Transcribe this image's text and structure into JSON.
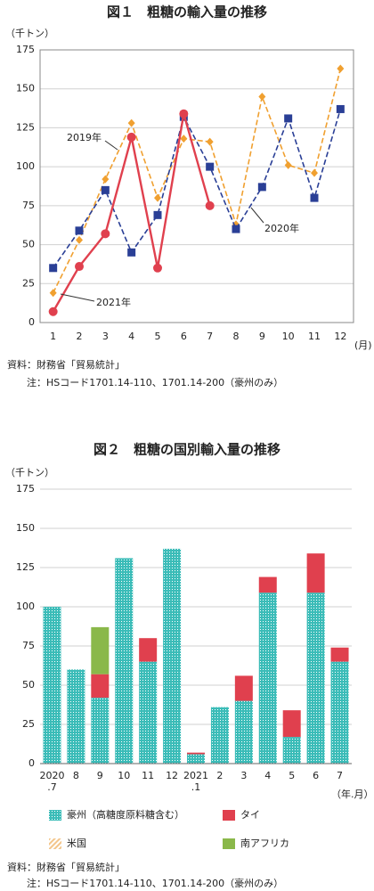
{
  "chart_data": [
    {
      "type": "line",
      "title": "図１　粗糖の輸入量の推移",
      "y_label": "（千トン）",
      "x_label": "(月)",
      "categories": [
        "1",
        "2",
        "3",
        "4",
        "5",
        "6",
        "7",
        "8",
        "9",
        "10",
        "11",
        "12"
      ],
      "series": [
        {
          "name": "2019年",
          "color": "#f0a030",
          "dash": true,
          "marker": "diamond",
          "values": [
            19,
            53,
            92,
            128,
            80,
            118,
            116,
            63,
            145,
            101,
            96,
            163
          ]
        },
        {
          "name": "2020年",
          "color": "#2a3f96",
          "dash": true,
          "marker": "square",
          "values": [
            35,
            59,
            85,
            45,
            69,
            132,
            100,
            60,
            87,
            131,
            80,
            137
          ]
        },
        {
          "name": "2021年",
          "color": "#e0404e",
          "dash": false,
          "marker": "circle",
          "values": [
            7,
            36,
            57,
            119,
            35,
            134,
            75,
            null,
            null,
            null,
            null,
            null
          ]
        }
      ],
      "ylim": [
        0,
        175
      ],
      "yticks": [
        0,
        25,
        50,
        75,
        100,
        125,
        150,
        175
      ],
      "grid": true,
      "source": "資料：財務省「貿易統計」",
      "note": "注：HSコード1701.14-110、1701.14-200（豪州のみ）"
    },
    {
      "type": "bar",
      "stacked": true,
      "title": "図２　粗糖の国別輸入量の推移",
      "y_label": "（千トン）",
      "x_label": "（年.月）",
      "categories": [
        "2020\n.7",
        "8",
        "9",
        "10",
        "11",
        "12",
        "2021\n.1",
        "2",
        "3",
        "4",
        "5",
        "6",
        "7"
      ],
      "series": [
        {
          "name": "豪州（高糖度原料糖含む）",
          "color": "#3bbcb8",
          "pattern": "dots",
          "values": [
            100,
            60,
            42,
            131,
            65,
            137,
            6,
            36,
            40,
            109,
            17,
            109,
            65
          ]
        },
        {
          "name": "タイ",
          "color": "#e0404e",
          "values": [
            0,
            0,
            15,
            0,
            15,
            0,
            1,
            0,
            16,
            10,
            17,
            25,
            9
          ]
        },
        {
          "name": "米国",
          "color": "#f3c58a",
          "pattern": "hatch",
          "values": [
            0,
            0,
            0,
            0,
            0,
            0,
            0,
            0,
            0,
            0,
            0,
            0,
            0
          ]
        },
        {
          "name": "南アフリカ",
          "color": "#8ab84a",
          "values": [
            0,
            0,
            30,
            0,
            0,
            0,
            0,
            0,
            0,
            0,
            0,
            0,
            0
          ]
        }
      ],
      "ylim": [
        0,
        175
      ],
      "yticks": [
        0,
        25,
        50,
        75,
        100,
        125,
        150,
        175
      ],
      "grid": true,
      "source": "資料：財務省「貿易統計」",
      "note": "注：HSコード1701.14-110、1701.14-200（豪州のみ）"
    }
  ]
}
